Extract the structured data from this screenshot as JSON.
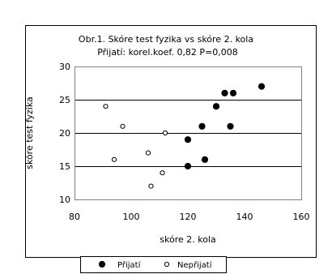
{
  "chart_data": {
    "type": "scatter",
    "title_line1": "Obr.1. Skóre test fyzika vs skóre 2. kola",
    "title_line2": "Přijatí: korel.koef. 0,82 P=0,008",
    "xlabel": "skóre 2. kola",
    "ylabel": "skóre test fyzika",
    "xlim": [
      80,
      160
    ],
    "ylim": [
      10,
      30
    ],
    "xticks": [
      80,
      100,
      120,
      140,
      160
    ],
    "yticks": [
      10,
      15,
      20,
      25,
      30
    ],
    "xtick_labels": [
      "80",
      "100",
      "120",
      "140",
      "160"
    ],
    "ytick_labels": [
      "10",
      "15",
      "20",
      "25",
      "30"
    ],
    "grid": "horizontal",
    "legend_position": "bottom",
    "series": [
      {
        "name": "Přijatí",
        "marker": "filled-circle",
        "color": "#000000",
        "points": [
          {
            "x": 120,
            "y": 19
          },
          {
            "x": 120,
            "y": 15
          },
          {
            "x": 125,
            "y": 21
          },
          {
            "x": 126,
            "y": 16
          },
          {
            "x": 130,
            "y": 24
          },
          {
            "x": 133,
            "y": 26
          },
          {
            "x": 135,
            "y": 21
          },
          {
            "x": 136,
            "y": 26
          },
          {
            "x": 146,
            "y": 27
          }
        ]
      },
      {
        "name": "Nepřijatí",
        "marker": "open-circle",
        "color": "#000000",
        "points": [
          {
            "x": 91,
            "y": 24
          },
          {
            "x": 94,
            "y": 16
          },
          {
            "x": 97,
            "y": 21
          },
          {
            "x": 106,
            "y": 17
          },
          {
            "x": 107,
            "y": 12
          },
          {
            "x": 111,
            "y": 14
          },
          {
            "x": 112,
            "y": 20
          }
        ]
      }
    ]
  }
}
